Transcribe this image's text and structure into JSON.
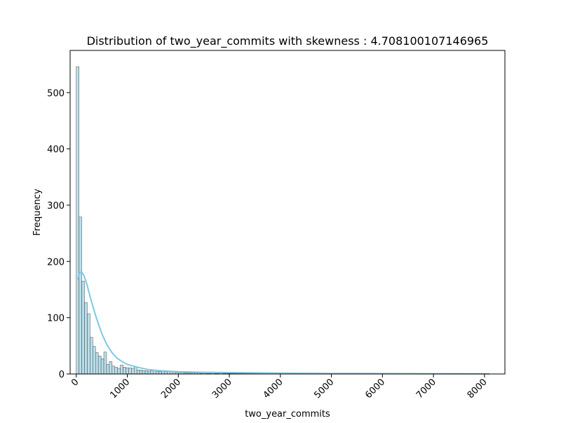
{
  "chart_data": {
    "type": "bar",
    "title": "Distribution of two_year_commits with skewness : 4.708100107146965",
    "xlabel": "two_year_commits",
    "ylabel": "Frequency",
    "xlim": [
      -120,
      8400
    ],
    "ylim": [
      0,
      575
    ],
    "x_ticks": [
      0,
      1000,
      2000,
      3000,
      4000,
      5000,
      6000,
      7000,
      8000
    ],
    "x_tick_labels": [
      "0",
      "1000",
      "2000",
      "3000",
      "4000",
      "5000",
      "6000",
      "7000",
      "8000"
    ],
    "y_ticks": [
      0,
      100,
      200,
      300,
      400,
      500
    ],
    "y_tick_labels": [
      "0",
      "100",
      "200",
      "300",
      "400",
      "500"
    ],
    "bin_width": 54,
    "bin_start": 0,
    "counts": [
      546,
      279,
      165,
      127,
      107,
      65,
      49,
      38,
      32,
      27,
      39,
      17,
      22,
      14,
      12,
      10,
      16,
      12,
      11,
      11,
      10,
      13,
      7,
      7,
      6,
      6,
      5,
      6,
      7,
      4,
      4,
      5,
      4,
      5,
      4,
      5,
      3,
      3,
      3,
      2,
      2,
      2,
      2,
      2,
      2,
      1,
      2,
      1,
      1,
      2,
      1,
      1,
      2,
      1,
      1,
      1,
      1,
      1,
      1,
      1,
      1,
      1,
      1,
      1,
      1,
      1,
      1,
      1,
      1,
      1,
      1,
      1,
      0,
      1,
      1,
      1,
      1,
      0,
      1,
      1,
      0,
      1,
      0,
      0,
      0,
      0,
      0,
      0,
      0,
      0,
      0,
      0,
      0,
      0,
      0,
      0,
      0,
      0,
      0,
      0,
      0,
      0,
      0,
      0,
      0,
      0,
      0,
      0,
      0,
      0,
      0,
      0,
      0,
      0,
      0,
      0,
      0,
      0,
      0,
      0,
      0,
      0,
      0,
      0,
      0,
      0,
      0,
      0,
      0,
      0,
      0,
      0,
      0,
      0,
      0,
      0,
      0,
      0,
      0,
      0,
      0,
      0,
      0,
      0,
      0,
      0,
      0,
      0,
      0,
      0
    ],
    "kde": {
      "x": [
        30,
        60,
        100,
        150,
        200,
        250,
        300,
        400,
        500,
        600,
        700,
        800,
        900,
        1000,
        1200,
        1400,
        1600,
        1800,
        2000,
        2500,
        3000,
        3500,
        4000,
        5000,
        6000,
        7000,
        8000,
        8100
      ],
      "y": [
        168,
        178,
        182,
        175,
        162,
        145,
        128,
        98,
        72,
        52,
        38,
        28,
        22,
        17,
        12,
        8,
        6,
        5,
        4,
        3,
        2.5,
        2,
        1.5,
        1,
        0.8,
        0.5,
        0.3,
        0.2
      ]
    },
    "bar_fill": "#add8e6",
    "bar_stroke": "#4a4a4a",
    "kde_color": "#7ec8e3",
    "grid": false,
    "legend": "none"
  }
}
